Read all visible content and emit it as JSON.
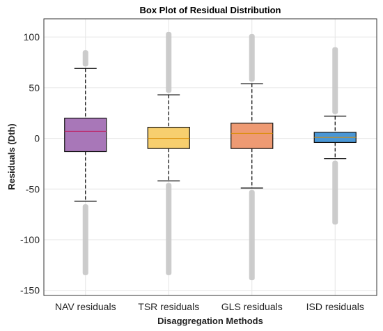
{
  "chart_data": {
    "type": "box",
    "title": "Box Plot of Residual Distribution",
    "xlabel": "Disaggregation Methods",
    "ylabel": "Residuals (Dth)",
    "ylim": [
      -155,
      118
    ],
    "yticks": [
      100,
      50,
      0,
      -50,
      -100,
      -150
    ],
    "grid": true,
    "categories": [
      "NAV residuals",
      "TSR residuals",
      "GLS residuals",
      "ISD residuals"
    ],
    "boxes": [
      {
        "q1": -13,
        "median": 7,
        "q3": 20,
        "whisker_low": -62,
        "whisker_high": 69,
        "outlier_low": [
          -135,
          -65
        ],
        "outlier_high": [
          71,
          87
        ],
        "color": "#a877b8"
      },
      {
        "q1": -10,
        "median": 0,
        "q3": 11,
        "whisker_low": -42,
        "whisker_high": 43,
        "outlier_low": [
          -135,
          -44
        ],
        "outlier_high": [
          45,
          105
        ],
        "color": "#f7cf6e"
      },
      {
        "q1": -10,
        "median": 5,
        "q3": 15,
        "whisker_low": -49,
        "whisker_high": 54,
        "outlier_low": [
          -140,
          -51
        ],
        "outlier_high": [
          56,
          103
        ],
        "color": "#ee9a73"
      },
      {
        "q1": -4,
        "median": 1,
        "q3": 6,
        "whisker_low": -20,
        "whisker_high": 22,
        "outlier_low": [
          -85,
          -22
        ],
        "outlier_high": [
          24,
          90
        ],
        "color": "#4a97d6"
      }
    ]
  }
}
